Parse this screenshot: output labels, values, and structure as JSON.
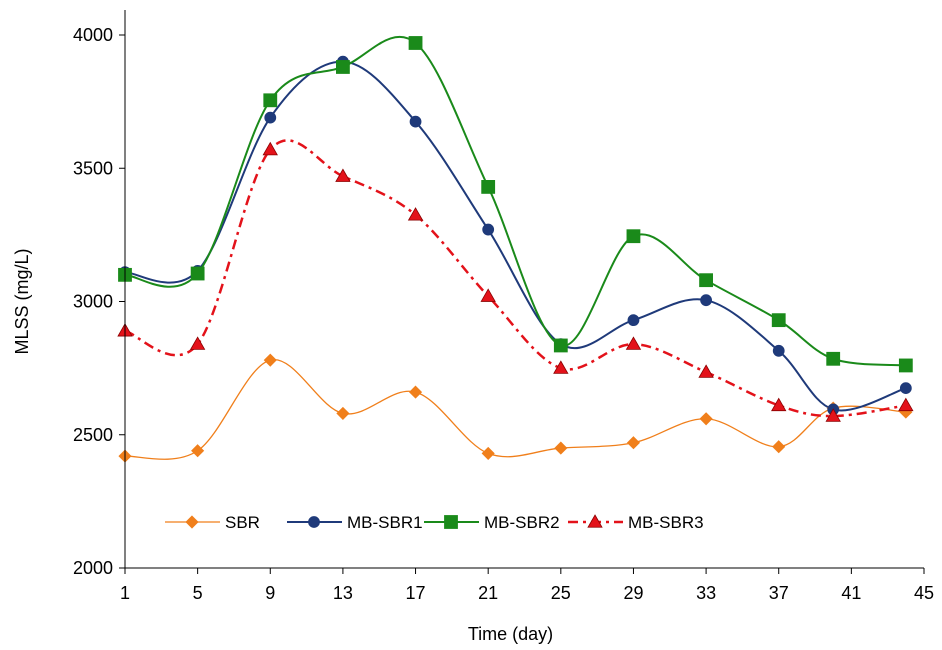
{
  "chart_data": {
    "type": "line",
    "title": "",
    "xlabel": "Time (day)",
    "ylabel": "MLSS (mg/L)",
    "xlim": [
      1,
      45
    ],
    "ylim": [
      2000,
      4000
    ],
    "x_ticks": [
      "1",
      "5",
      "9",
      "13",
      "17",
      "21",
      "25",
      "29",
      "33",
      "37",
      "41",
      "45"
    ],
    "y_ticks": [
      "2000",
      "2500",
      "3000",
      "3500",
      "4000"
    ],
    "legend_position": "bottom-inside",
    "grid": false,
    "series": [
      {
        "name": "SBR",
        "color": "#F07F1B",
        "marker": "diamond",
        "line_style": "solid-thin",
        "x": [
          1,
          5,
          9,
          13,
          17,
          21,
          25,
          29,
          33,
          37,
          40,
          44
        ],
        "y": [
          2420,
          2440,
          2780,
          2580,
          2660,
          2430,
          2450,
          2470,
          2560,
          2455,
          2600,
          2585
        ]
      },
      {
        "name": "MB-SBR1",
        "color": "#1F3A7A",
        "marker": "circle",
        "line_style": "solid",
        "x": [
          1,
          5,
          9,
          13,
          17,
          21,
          25,
          29,
          33,
          37,
          40,
          44
        ],
        "y": [
          3110,
          3115,
          3690,
          3900,
          3675,
          3270,
          2840,
          2930,
          3005,
          2815,
          2595,
          2675
        ]
      },
      {
        "name": "MB-SBR2",
        "color": "#1A8A1A",
        "marker": "square",
        "line_style": "solid",
        "x": [
          1,
          5,
          9,
          13,
          17,
          21,
          25,
          29,
          33,
          37,
          40,
          44
        ],
        "y": [
          3100,
          3105,
          3755,
          3880,
          3970,
          3430,
          2835,
          3245,
          3080,
          2930,
          2785,
          2760
        ]
      },
      {
        "name": "MB-SBR3",
        "color": "#E3121A",
        "marker": "triangle",
        "line_style": "dash-dot",
        "x": [
          1,
          5,
          9,
          13,
          17,
          21,
          25,
          29,
          33,
          37,
          40,
          44
        ],
        "y": [
          2890,
          2840,
          3570,
          3470,
          3325,
          3020,
          2750,
          2840,
          2735,
          2610,
          2570,
          2610
        ]
      }
    ]
  }
}
